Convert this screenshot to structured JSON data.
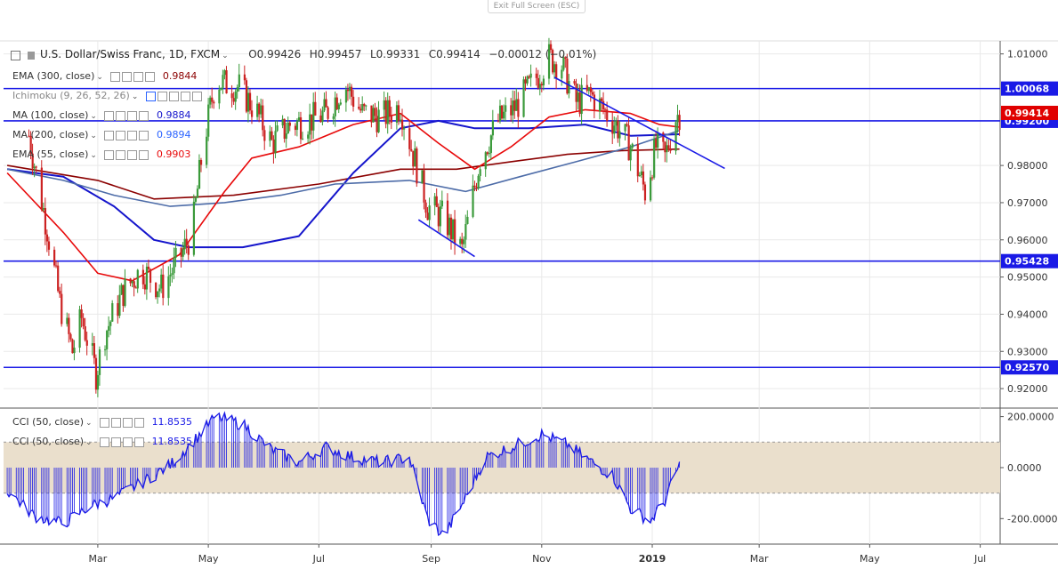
{
  "window": {
    "exit_fullscreen_label": "Exit Full Screen (ESC)"
  },
  "header": {
    "symbol": "U.S. Dollar/Swiss Franc, 1D, FXCM",
    "open": "O0.99426",
    "high": "H0.99457",
    "low": "L0.99331",
    "close": "C0.99414",
    "change": "−0.00012 (−0.01%)"
  },
  "indicators": [
    {
      "label": "EMA (300, close)",
      "value": "0.9844",
      "color": "#8b0000"
    },
    {
      "label": "Ichimoku (9, 26, 52, 26)",
      "value": "",
      "color": "#2962ff"
    },
    {
      "label": "MA (100, close)",
      "value": "0.9884",
      "color": "#1515cc"
    },
    {
      "label": "MA (200, close)",
      "value": "0.9894",
      "color": "#2962ff"
    },
    {
      "label": "EMA (55, close)",
      "value": "0.9903",
      "color": "#e8090a"
    }
  ],
  "cci_legends": [
    {
      "label": "CCI (50, close)",
      "value": "11.8535"
    },
    {
      "label": "CCI (50, close)",
      "value": "11.8535"
    }
  ],
  "colors": {
    "up": "#3a9a3a",
    "down": "#cc2222",
    "blue_line": "#1a1ae6",
    "band": "#eadfcc",
    "cci": "#1a1ae6"
  },
  "chart_data": [
    {
      "type": "candlestick",
      "title": "U.S. Dollar/Swiss Franc, 1D, FXCM",
      "ylim": [
        0.915,
        1.0135
      ],
      "y_ticks": [
        "1.01000",
        "0.98000",
        "0.97000",
        "0.96000",
        "0.95000",
        "0.94000",
        "0.93000",
        "0.92000"
      ],
      "x_ticks": [
        "Mar",
        "May",
        "Jul",
        "Sep",
        "Nov",
        "2019",
        "Mar",
        "May",
        "Jul"
      ],
      "horizontal_levels": [
        {
          "label": "1.00068",
          "value": 1.00068
        },
        {
          "label": "0.99200",
          "value": 0.992
        },
        {
          "label": "0.95428",
          "value": 0.95428
        },
        {
          "label": "0.92570",
          "value": 0.9257
        }
      ],
      "price_label": {
        "label": "0.99414",
        "value": 0.99414
      },
      "trendlines": [
        {
          "name": "downtrend",
          "points": [
            [
              "2018-11-08",
              1.0037
            ],
            [
              "2019-02-10",
              0.9792
            ]
          ]
        },
        {
          "name": "wedge",
          "points": [
            [
              "2018-08-25",
              0.9654
            ],
            [
              "2018-09-25",
              0.9555
            ]
          ]
        }
      ],
      "ohlc_path_close": [
        [
          "2018-01-22",
          0.988
        ],
        [
          "2018-02-01",
          0.963
        ],
        [
          "2018-02-08",
          0.943
        ],
        [
          "2018-02-15",
          0.93
        ],
        [
          "2018-02-20",
          0.939
        ],
        [
          "2018-02-25",
          0.93
        ],
        [
          "2018-02-28",
          0.924
        ],
        [
          "2018-03-05",
          0.935
        ],
        [
          "2018-03-15",
          0.946
        ],
        [
          "2018-03-25",
          0.952
        ],
        [
          "2018-04-05",
          0.947
        ],
        [
          "2018-04-15",
          0.955
        ],
        [
          "2018-04-22",
          0.962
        ],
        [
          "2018-04-28",
          0.985
        ],
        [
          "2018-05-05",
          1.003
        ],
        [
          "2018-05-10",
          1.002
        ],
        [
          "2018-05-18",
          1.001
        ],
        [
          "2018-05-28",
          0.994
        ],
        [
          "2018-06-05",
          0.986
        ],
        [
          "2018-06-15",
          0.991
        ],
        [
          "2018-06-25",
          0.992
        ],
        [
          "2018-07-05",
          0.994
        ],
        [
          "2018-07-15",
          1.002
        ],
        [
          "2018-07-25",
          0.994
        ],
        [
          "2018-08-05",
          0.993
        ],
        [
          "2018-08-15",
          0.996
        ],
        [
          "2018-08-22",
          0.983
        ],
        [
          "2018-08-30",
          0.969
        ],
        [
          "2018-09-08",
          0.966
        ],
        [
          "2018-09-18",
          0.957
        ],
        [
          "2018-09-28",
          0.982
        ],
        [
          "2018-10-08",
          0.992
        ],
        [
          "2018-10-18",
          0.996
        ],
        [
          "2018-10-28",
          1.003
        ],
        [
          "2018-11-05",
          1.009
        ],
        [
          "2018-11-12",
          1.007
        ],
        [
          "2018-11-20",
          0.997
        ],
        [
          "2018-11-28",
          0.999
        ],
        [
          "2018-12-05",
          0.995
        ],
        [
          "2018-12-12",
          0.991
        ],
        [
          "2018-12-20",
          0.985
        ],
        [
          "2018-12-28",
          0.973
        ],
        [
          "2019-01-03",
          0.985
        ],
        [
          "2019-01-08",
          0.982
        ],
        [
          "2019-01-14",
          0.993
        ],
        [
          "2019-01-16",
          0.994
        ]
      ],
      "series": [
        {
          "name": "EMA (300, close)",
          "color": "#8b0000",
          "values": [
            [
              "2018-01-10",
              0.98
            ],
            [
              "2018-03-01",
              0.976
            ],
            [
              "2018-04-01",
              0.971
            ],
            [
              "2018-05-15",
              0.972
            ],
            [
              "2018-07-01",
              0.975
            ],
            [
              "2018-08-15",
              0.979
            ],
            [
              "2018-09-15",
              0.979
            ],
            [
              "2018-10-15",
              0.981
            ],
            [
              "2018-11-15",
              0.983
            ],
            [
              "2018-12-15",
              0.984
            ],
            [
              "2019-01-16",
              0.9844
            ]
          ]
        },
        {
          "name": "MA (100, close)",
          "color": "#1515cc",
          "values": [
            [
              "2018-01-10",
              0.979
            ],
            [
              "2018-02-10",
              0.977
            ],
            [
              "2018-03-10",
              0.969
            ],
            [
              "2018-04-01",
              0.96
            ],
            [
              "2018-04-20",
              0.958
            ],
            [
              "2018-05-20",
              0.958
            ],
            [
              "2018-06-20",
              0.961
            ],
            [
              "2018-07-20",
              0.978
            ],
            [
              "2018-08-15",
              0.99
            ],
            [
              "2018-09-05",
              0.992
            ],
            [
              "2018-09-25",
              0.99
            ],
            [
              "2018-10-25",
              0.99
            ],
            [
              "2018-11-25",
              0.991
            ],
            [
              "2018-12-20",
              0.988
            ],
            [
              "2019-01-16",
              0.9884
            ]
          ]
        },
        {
          "name": "MA (200, close)",
          "color": "#4d6ca8",
          "values": [
            [
              "2018-01-10",
              0.979
            ],
            [
              "2018-02-10",
              0.976
            ],
            [
              "2018-03-10",
              0.972
            ],
            [
              "2018-04-10",
              0.969
            ],
            [
              "2018-05-10",
              0.97
            ],
            [
              "2018-06-10",
              0.972
            ],
            [
              "2018-07-10",
              0.975
            ],
            [
              "2018-08-20",
              0.976
            ],
            [
              "2018-09-20",
              0.973
            ],
            [
              "2018-10-20",
              0.977
            ],
            [
              "2018-11-20",
              0.981
            ],
            [
              "2018-12-20",
              0.985
            ],
            [
              "2019-01-16",
              0.9894
            ]
          ]
        },
        {
          "name": "EMA (55, close)",
          "color": "#e8090a",
          "values": [
            [
              "2018-01-10",
              0.978
            ],
            [
              "2018-02-10",
              0.962
            ],
            [
              "2018-03-01",
              0.951
            ],
            [
              "2018-03-20",
              0.949
            ],
            [
              "2018-04-15",
              0.956
            ],
            [
              "2018-05-10",
              0.973
            ],
            [
              "2018-05-25",
              0.982
            ],
            [
              "2018-06-20",
              0.985
            ],
            [
              "2018-07-20",
              0.991
            ],
            [
              "2018-08-15",
              0.994
            ],
            [
              "2018-09-05",
              0.986
            ],
            [
              "2018-09-25",
              0.979
            ],
            [
              "2018-10-15",
              0.985
            ],
            [
              "2018-11-05",
              0.993
            ],
            [
              "2018-11-25",
              0.995
            ],
            [
              "2018-12-20",
              0.994
            ],
            [
              "2019-01-05",
              0.991
            ],
            [
              "2019-01-16",
              0.9903
            ]
          ]
        }
      ]
    },
    {
      "type": "line",
      "title": "CCI (50, close)",
      "ylim": [
        -300,
        230
      ],
      "y_ticks": [
        "200.0000",
        "0.0000",
        "-200.0000"
      ],
      "band": [
        -100,
        100
      ],
      "values": [
        [
          "2018-01-10",
          -90
        ],
        [
          "2018-01-25",
          -190
        ],
        [
          "2018-02-10",
          -220
        ],
        [
          "2018-02-25",
          -150
        ],
        [
          "2018-03-10",
          -120
        ],
        [
          "2018-03-25",
          -60
        ],
        [
          "2018-04-10",
          10
        ],
        [
          "2018-04-25",
          120
        ],
        [
          "2018-05-05",
          200
        ],
        [
          "2018-05-20",
          170
        ],
        [
          "2018-06-05",
          70
        ],
        [
          "2018-06-20",
          20
        ],
        [
          "2018-07-05",
          80
        ],
        [
          "2018-07-20",
          40
        ],
        [
          "2018-08-05",
          20
        ],
        [
          "2018-08-20",
          40
        ],
        [
          "2018-08-30",
          -200
        ],
        [
          "2018-09-08",
          -270
        ],
        [
          "2018-09-20",
          -120
        ],
        [
          "2018-10-01",
          40
        ],
        [
          "2018-10-15",
          80
        ],
        [
          "2018-11-01",
          130
        ],
        [
          "2018-11-15",
          90
        ],
        [
          "2018-12-01",
          10
        ],
        [
          "2018-12-10",
          -30
        ],
        [
          "2018-12-20",
          -160
        ],
        [
          "2018-12-31",
          -210
        ],
        [
          "2019-01-08",
          -130
        ],
        [
          "2019-01-16",
          11.85
        ]
      ]
    }
  ]
}
